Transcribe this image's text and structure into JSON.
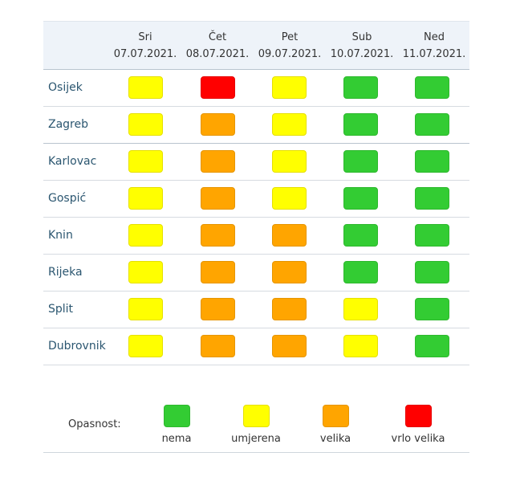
{
  "days": [
    {
      "name": "Sri",
      "date": "07.07.2021."
    },
    {
      "name": "Čet",
      "date": "08.07.2021."
    },
    {
      "name": "Pet",
      "date": "09.07.2021."
    },
    {
      "name": "Sub",
      "date": "10.07.2021."
    },
    {
      "name": "Ned",
      "date": "11.07.2021."
    }
  ],
  "rows": [
    {
      "city": "Osijek",
      "levels": [
        "umjerena",
        "vrlo_velika",
        "umjerena",
        "nema",
        "nema"
      ]
    },
    {
      "city": "Zagreb",
      "levels": [
        "umjerena",
        "velika",
        "umjerena",
        "nema",
        "nema"
      ]
    },
    {
      "city": "Karlovac",
      "levels": [
        "umjerena",
        "velika",
        "umjerena",
        "nema",
        "nema"
      ]
    },
    {
      "city": "Gospić",
      "levels": [
        "umjerena",
        "velika",
        "umjerena",
        "nema",
        "nema"
      ]
    },
    {
      "city": "Knin",
      "levels": [
        "umjerena",
        "velika",
        "velika",
        "nema",
        "nema"
      ]
    },
    {
      "city": "Rijeka",
      "levels": [
        "umjerena",
        "velika",
        "velika",
        "nema",
        "nema"
      ]
    },
    {
      "city": "Split",
      "levels": [
        "umjerena",
        "velika",
        "velika",
        "umjerena",
        "nema"
      ]
    },
    {
      "city": "Dubrovnik",
      "levels": [
        "umjerena",
        "velika",
        "velika",
        "umjerena",
        "nema"
      ]
    }
  ],
  "legend": {
    "title": "Opasnost:",
    "items": [
      {
        "key": "nema",
        "label": "nema"
      },
      {
        "key": "umjerena",
        "label": "umjerena"
      },
      {
        "key": "velika",
        "label": "velika"
      },
      {
        "key": "vrlo_velika",
        "label": "vrlo velika"
      }
    ]
  },
  "colors": {
    "nema": "#33cc33",
    "umjerena": "#ffff00",
    "velika": "#ffa500",
    "vrlo_velika": "#ff0000"
  }
}
